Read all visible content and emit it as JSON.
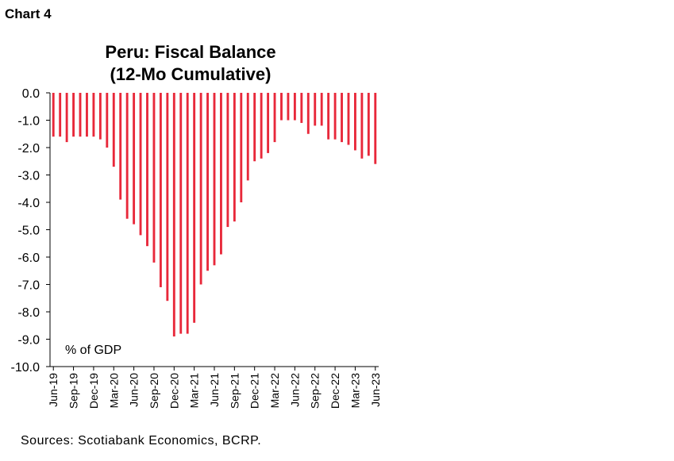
{
  "header": {
    "chart_label": "Chart 4"
  },
  "footer": {
    "sources": "Sources: Scotiabank Economics, BCRP."
  },
  "colors": {
    "bar": "#e8283a",
    "axis": "#000000"
  },
  "chart_data": {
    "type": "bar",
    "title_lines": [
      "Peru: Fiscal Balance",
      "(12-Mo Cumulative)"
    ],
    "unit_label": "% of GDP",
    "ylim": [
      -10.0,
      0.0
    ],
    "y_ticks": [
      "0.0",
      "-1.0",
      "-2.0",
      "-3.0",
      "-4.0",
      "-5.0",
      "-6.0",
      "-7.0",
      "-8.0",
      "-9.0",
      "-10.0"
    ],
    "x_tick_labels": [
      "Jun-19",
      "Sep-19",
      "Dec-19",
      "Mar-20",
      "Jun-20",
      "Sep-20",
      "Dec-20",
      "Mar-21",
      "Jun-21",
      "Sep-21",
      "Dec-21",
      "Mar-22",
      "Jun-22",
      "Sep-22",
      "Dec-22",
      "Mar-23",
      "Jun-23"
    ],
    "x_tick_every": 3,
    "grid": false,
    "categories": [
      "Jun-19",
      "Jul-19",
      "Aug-19",
      "Sep-19",
      "Oct-19",
      "Nov-19",
      "Dec-19",
      "Jan-20",
      "Feb-20",
      "Mar-20",
      "Apr-20",
      "May-20",
      "Jun-20",
      "Jul-20",
      "Aug-20",
      "Sep-20",
      "Oct-20",
      "Nov-20",
      "Dec-20",
      "Jan-21",
      "Feb-21",
      "Mar-21",
      "Apr-21",
      "May-21",
      "Jun-21",
      "Jul-21",
      "Aug-21",
      "Sep-21",
      "Oct-21",
      "Nov-21",
      "Dec-21",
      "Jan-22",
      "Feb-22",
      "Mar-22",
      "Apr-22",
      "May-22",
      "Jun-22",
      "Jul-22",
      "Aug-22",
      "Sep-22",
      "Oct-22",
      "Nov-22",
      "Dec-22",
      "Jan-23",
      "Feb-23",
      "Mar-23",
      "Apr-23",
      "May-23",
      "Jun-23"
    ],
    "values": [
      -1.6,
      -1.6,
      -1.8,
      -1.6,
      -1.6,
      -1.6,
      -1.6,
      -1.7,
      -2.0,
      -2.7,
      -3.9,
      -4.6,
      -4.8,
      -5.2,
      -5.6,
      -6.2,
      -7.1,
      -7.6,
      -8.9,
      -8.8,
      -8.8,
      -8.4,
      -7.0,
      -6.5,
      -6.3,
      -5.9,
      -4.9,
      -4.7,
      -4.0,
      -3.2,
      -2.5,
      -2.4,
      -2.2,
      -1.8,
      -1.0,
      -1.0,
      -1.0,
      -1.1,
      -1.5,
      -1.2,
      -1.2,
      -1.7,
      -1.7,
      -1.8,
      -1.9,
      -2.1,
      -2.4,
      -2.3,
      -2.6
    ]
  }
}
